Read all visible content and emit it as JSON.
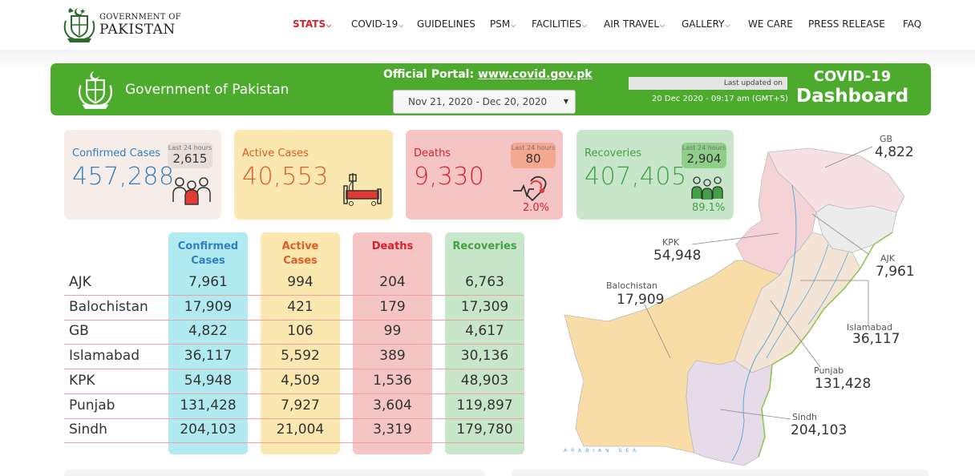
{
  "header": {
    "logo_line1": "GOVERNMENT OF",
    "logo_line2": "PAKISTAN",
    "nav": [
      {
        "label": "STATS",
        "dropdown": true,
        "active": true
      },
      {
        "label": "COVID-19",
        "dropdown": true
      },
      {
        "label": "GUIDELINES"
      },
      {
        "label": "PSM",
        "dropdown": true
      },
      {
        "label": "FACILITIES",
        "dropdown": true
      },
      {
        "label": "AIR TRAVEL",
        "dropdown": true
      },
      {
        "label": "GALLERY",
        "dropdown": true
      },
      {
        "label": "WE CARE"
      },
      {
        "label": "PRESS RELEASE"
      },
      {
        "label": "FAQ"
      }
    ]
  },
  "banner": {
    "government": "Government of Pakistan",
    "portal_label": "Official Portal:",
    "portal_link": "www.covid.gov.pk",
    "date_range": "Nov 21, 2020 - Dec 20, 2020",
    "last_updated_label": "Last updated on",
    "last_updated_value": "20 Dec 2020 - 09:17 am (GMT+5)",
    "title_line1": "COVID-19",
    "title_line2": "Dashboard"
  },
  "cards": {
    "confirmed": {
      "label": "Confirmed Cases",
      "value": "457,288",
      "last24_label": "Last 24 hours",
      "last24_value": "2,615",
      "icon": "people-group-icon",
      "color": "#2f7fc1"
    },
    "active": {
      "label": "Active Cases",
      "value": "40,553",
      "icon": "hospital-bed-icon",
      "color": "#e15b25"
    },
    "deaths": {
      "label": "Deaths",
      "value": "9,330",
      "last24_label": "Last 24 hours",
      "last24_value": "80",
      "pct": "2.0%",
      "icon": "heartbeat-icon",
      "color": "#d6202b"
    },
    "recoveries": {
      "label": "Recoveries",
      "value": "407,405",
      "last24_label": "Last 24 hours",
      "last24_value": "2,904",
      "pct": "89.1%",
      "icon": "recovered-people-icon",
      "color": "#43a047"
    }
  },
  "table": {
    "headers": [
      {
        "line1": "Confirmed",
        "line2": "Cases"
      },
      {
        "line1": "Active",
        "line2": "Cases"
      },
      {
        "line1": "Deaths",
        "line2": ""
      },
      {
        "line1": "Recoveries",
        "line2": ""
      }
    ],
    "rows": [
      {
        "province": "AJK",
        "confirmed": "7,961",
        "active": "994",
        "deaths": "204",
        "recoveries": "6,763"
      },
      {
        "province": "Balochistan",
        "confirmed": "17,909",
        "active": "421",
        "deaths": "179",
        "recoveries": "17,309"
      },
      {
        "province": "GB",
        "confirmed": "4,822",
        "active": "106",
        "deaths": "99",
        "recoveries": "4,617"
      },
      {
        "province": "Islamabad",
        "confirmed": "36,117",
        "active": "5,592",
        "deaths": "389",
        "recoveries": "30,136"
      },
      {
        "province": "KPK",
        "confirmed": "54,948",
        "active": "4,509",
        "deaths": "1,536",
        "recoveries": "48,903"
      },
      {
        "province": "Punjab",
        "confirmed": "131,428",
        "active": "7,927",
        "deaths": "3,604",
        "recoveries": "119,897"
      },
      {
        "province": "Sindh",
        "confirmed": "204,103",
        "active": "21,004",
        "deaths": "3,319",
        "recoveries": "179,780"
      }
    ]
  },
  "map": {
    "labels": [
      {
        "name": "GB",
        "value": "4,822"
      },
      {
        "name": "KPK",
        "value": "54,948"
      },
      {
        "name": "AJK",
        "value": "7,961"
      },
      {
        "name": "Balochistan",
        "value": "17,909"
      },
      {
        "name": "Islamabad",
        "value": "36,117"
      },
      {
        "name": "Punjab",
        "value": "131,428"
      },
      {
        "name": "Sindh",
        "value": "204,103"
      }
    ],
    "sea_label": "ARABIAN SEA",
    "colors": {
      "balochistan": "#f8dea6",
      "sindh": "#e8dbe9",
      "punjab": "#f3e4d6",
      "kpk": "#f5d2d6",
      "gb": "#f6e0e4",
      "ajk": "#e9e9e9"
    }
  }
}
